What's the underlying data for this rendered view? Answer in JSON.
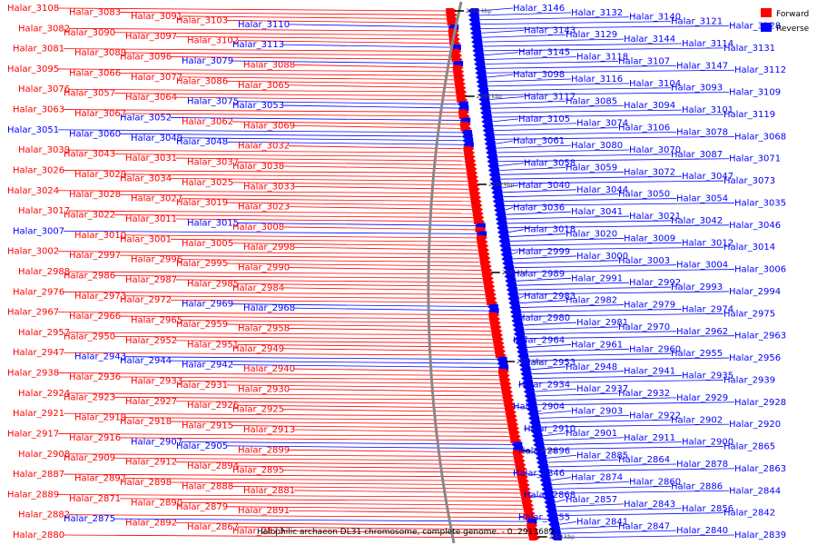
{
  "legend": {
    "forward": {
      "label": "Forward",
      "color": "#ff0000"
    },
    "reverse": {
      "label": "Reverse",
      "color": "#0000ff"
    }
  },
  "caption": "Halophilic archaeon DL31 chromosome, complete genome. - 0..2913689",
  "ticks": [
    "2350 kbp",
    "2300 kbp",
    "2250 kbp",
    "2200 kbp",
    "2150 kbp",
    "2100 kbp",
    "2050 kbp"
  ],
  "left_genes": [
    {
      "n": "Halar_3108",
      "s": "f"
    },
    {
      "n": "Halar_3083",
      "s": "f"
    },
    {
      "n": "Halar_3091",
      "s": "f"
    },
    {
      "n": "Halar_3103",
      "s": "f"
    },
    {
      "n": "Halar_3110",
      "s": "r"
    },
    {
      "n": "Halar_3082",
      "s": "f"
    },
    {
      "n": "Halar_3090",
      "s": "f"
    },
    {
      "n": "Halar_3097",
      "s": "f"
    },
    {
      "n": "Halar_3102",
      "s": "f"
    },
    {
      "n": "Halar_3113",
      "s": "r"
    },
    {
      "n": "Halar_3081",
      "s": "f"
    },
    {
      "n": "Halar_3089",
      "s": "f"
    },
    {
      "n": "Halar_3096",
      "s": "f"
    },
    {
      "n": "Halar_3079",
      "s": "r"
    },
    {
      "n": "Halar_3088",
      "s": "f"
    },
    {
      "n": "Halar_3095",
      "s": "f"
    },
    {
      "n": "Halar_3066",
      "s": "f"
    },
    {
      "n": "Halar_3077",
      "s": "f"
    },
    {
      "n": "Halar_3086",
      "s": "f"
    },
    {
      "n": "Halar_3065",
      "s": "f"
    },
    {
      "n": "Halar_3076",
      "s": "f"
    },
    {
      "n": "Halar_3057",
      "s": "f"
    },
    {
      "n": "Halar_3064",
      "s": "f"
    },
    {
      "n": "Halar_3075",
      "s": "r"
    },
    {
      "n": "Halar_3053",
      "s": "r"
    },
    {
      "n": "Halar_3063",
      "s": "f"
    },
    {
      "n": "Halar_3067",
      "s": "f"
    },
    {
      "n": "Halar_3052",
      "s": "r"
    },
    {
      "n": "Halar_3062",
      "s": "f"
    },
    {
      "n": "Halar_3069",
      "s": "f"
    },
    {
      "n": "Halar_3051",
      "s": "r"
    },
    {
      "n": "Halar_3060",
      "s": "r"
    },
    {
      "n": "Halar_3049",
      "s": "r"
    },
    {
      "n": "Halar_3048",
      "s": "r"
    },
    {
      "n": "Halar_3032",
      "s": "f"
    },
    {
      "n": "Halar_3039",
      "s": "f"
    },
    {
      "n": "Halar_3043",
      "s": "f"
    },
    {
      "n": "Halar_3031",
      "s": "f"
    },
    {
      "n": "Halar_3037",
      "s": "f"
    },
    {
      "n": "Halar_3038",
      "s": "f"
    },
    {
      "n": "Halar_3026",
      "s": "f"
    },
    {
      "n": "Halar_3029",
      "s": "f"
    },
    {
      "n": "Halar_3034",
      "s": "f"
    },
    {
      "n": "Halar_3025",
      "s": "f"
    },
    {
      "n": "Halar_3033",
      "s": "f"
    },
    {
      "n": "Halar_3024",
      "s": "f"
    },
    {
      "n": "Halar_3028",
      "s": "f"
    },
    {
      "n": "Halar_3027",
      "s": "f"
    },
    {
      "n": "Halar_3019",
      "s": "f"
    },
    {
      "n": "Halar_3023",
      "s": "f"
    },
    {
      "n": "Halar_3017",
      "s": "f"
    },
    {
      "n": "Halar_3022",
      "s": "f"
    },
    {
      "n": "Halar_3011",
      "s": "f"
    },
    {
      "n": "Halar_3015",
      "s": "r"
    },
    {
      "n": "Halar_3008",
      "s": "f"
    },
    {
      "n": "Halar_3007",
      "s": "r"
    },
    {
      "n": "Halar_3010",
      "s": "f"
    },
    {
      "n": "Halar_3001",
      "s": "f"
    },
    {
      "n": "Halar_3005",
      "s": "f"
    },
    {
      "n": "Halar_2998",
      "s": "f"
    },
    {
      "n": "Halar_3002",
      "s": "f"
    },
    {
      "n": "Halar_2997",
      "s": "f"
    },
    {
      "n": "Halar_2996",
      "s": "f"
    },
    {
      "n": "Halar_2995",
      "s": "f"
    },
    {
      "n": "Halar_2990",
      "s": "f"
    },
    {
      "n": "Halar_2988",
      "s": "f"
    },
    {
      "n": "Halar_2986",
      "s": "f"
    },
    {
      "n": "Halar_2987",
      "s": "f"
    },
    {
      "n": "Halar_2985",
      "s": "f"
    },
    {
      "n": "Halar_2984",
      "s": "f"
    },
    {
      "n": "Halar_2976",
      "s": "f"
    },
    {
      "n": "Halar_2973",
      "s": "f"
    },
    {
      "n": "Halar_2972",
      "s": "f"
    },
    {
      "n": "Halar_2969",
      "s": "r"
    },
    {
      "n": "Halar_2968",
      "s": "r"
    },
    {
      "n": "Halar_2967",
      "s": "f"
    },
    {
      "n": "Halar_2966",
      "s": "f"
    },
    {
      "n": "Halar_2965",
      "s": "f"
    },
    {
      "n": "Halar_2959",
      "s": "f"
    },
    {
      "n": "Halar_2958",
      "s": "f"
    },
    {
      "n": "Halar_2957",
      "s": "f"
    },
    {
      "n": "Halar_2950",
      "s": "f"
    },
    {
      "n": "Halar_2952",
      "s": "f"
    },
    {
      "n": "Halar_2951",
      "s": "f"
    },
    {
      "n": "Halar_2949",
      "s": "f"
    },
    {
      "n": "Halar_2947",
      "s": "f"
    },
    {
      "n": "Halar_2943",
      "s": "r"
    },
    {
      "n": "Halar_2944",
      "s": "r"
    },
    {
      "n": "Halar_2942",
      "s": "r"
    },
    {
      "n": "Halar_2940",
      "s": "f"
    },
    {
      "n": "Halar_2938",
      "s": "f"
    },
    {
      "n": "Halar_2936",
      "s": "f"
    },
    {
      "n": "Halar_2933",
      "s": "f"
    },
    {
      "n": "Halar_2931",
      "s": "f"
    },
    {
      "n": "Halar_2930",
      "s": "f"
    },
    {
      "n": "Halar_2924",
      "s": "f"
    },
    {
      "n": "Halar_2923",
      "s": "f"
    },
    {
      "n": "Halar_2927",
      "s": "f"
    },
    {
      "n": "Halar_2926",
      "s": "f"
    },
    {
      "n": "Halar_2925",
      "s": "f"
    },
    {
      "n": "Halar_2921",
      "s": "f"
    },
    {
      "n": "Halar_2919",
      "s": "f"
    },
    {
      "n": "Halar_2918",
      "s": "f"
    },
    {
      "n": "Halar_2915",
      "s": "f"
    },
    {
      "n": "Halar_2913",
      "s": "f"
    },
    {
      "n": "Halar_2917",
      "s": "f"
    },
    {
      "n": "Halar_2916",
      "s": "f"
    },
    {
      "n": "Halar_2907",
      "s": "r"
    },
    {
      "n": "Halar_2905",
      "s": "r"
    },
    {
      "n": "Halar_2899",
      "s": "f"
    },
    {
      "n": "Halar_2908",
      "s": "f"
    },
    {
      "n": "Halar_2909",
      "s": "f"
    },
    {
      "n": "Halar_2912",
      "s": "f"
    },
    {
      "n": "Halar_2894",
      "s": "f"
    },
    {
      "n": "Halar_2895",
      "s": "f"
    },
    {
      "n": "Halar_2887",
      "s": "f"
    },
    {
      "n": "Halar_2897",
      "s": "f"
    },
    {
      "n": "Halar_2898",
      "s": "f"
    },
    {
      "n": "Halar_2888",
      "s": "f"
    },
    {
      "n": "Halar_2881",
      "s": "f"
    },
    {
      "n": "Halar_2889",
      "s": "f"
    },
    {
      "n": "Halar_2871",
      "s": "f"
    },
    {
      "n": "Halar_2890",
      "s": "f"
    },
    {
      "n": "Halar_2879",
      "s": "f"
    },
    {
      "n": "Halar_2891",
      "s": "f"
    },
    {
      "n": "Halar_2882",
      "s": "f"
    },
    {
      "n": "Halar_2875",
      "s": "r"
    },
    {
      "n": "Halar_2892",
      "s": "f"
    },
    {
      "n": "Halar_2867",
      "s": "f"
    },
    {
      "n": "Halar_2873",
      "s": "f"
    },
    {
      "n": "Halar_2880",
      "s": "f"
    }
  ],
  "right_genes": [
    {
      "n": "Halar_3146",
      "s": "r"
    },
    {
      "n": "Halar_3132",
      "s": "r"
    },
    {
      "n": "Halar_3140",
      "s": "r"
    },
    {
      "n": "Halar_3121",
      "s": "r"
    },
    {
      "n": "Halar_3128",
      "s": "r"
    },
    {
      "n": "Halar_3143",
      "s": "r"
    },
    {
      "n": "Halar_3129",
      "s": "r"
    },
    {
      "n": "Halar_3144",
      "s": "r"
    },
    {
      "n": "Halar_3114",
      "s": "r"
    },
    {
      "n": "Halar_3131",
      "s": "r"
    },
    {
      "n": "Halar_3145",
      "s": "r"
    },
    {
      "n": "Halar_3118",
      "s": "r"
    },
    {
      "n": "Halar_3107",
      "s": "r"
    },
    {
      "n": "Halar_3147",
      "s": "r"
    },
    {
      "n": "Halar_3112",
      "s": "r"
    },
    {
      "n": "Halar_3098",
      "s": "r"
    },
    {
      "n": "Halar_3116",
      "s": "r"
    },
    {
      "n": "Halar_3104",
      "s": "r"
    },
    {
      "n": "Halar_3093",
      "s": "r"
    },
    {
      "n": "Halar_3109",
      "s": "r"
    },
    {
      "n": "Halar_3117",
      "s": "r"
    },
    {
      "n": "Halar_3085",
      "s": "r"
    },
    {
      "n": "Halar_3094",
      "s": "r"
    },
    {
      "n": "Halar_3101",
      "s": "r"
    },
    {
      "n": "Halar_3119",
      "s": "r"
    },
    {
      "n": "Halar_3105",
      "s": "r"
    },
    {
      "n": "Halar_3074",
      "s": "r"
    },
    {
      "n": "Halar_3106",
      "s": "r"
    },
    {
      "n": "Halar_3078",
      "s": "r"
    },
    {
      "n": "Halar_3068",
      "s": "r"
    },
    {
      "n": "Halar_3061",
      "s": "r"
    },
    {
      "n": "Halar_3080",
      "s": "r"
    },
    {
      "n": "Halar_3070",
      "s": "r"
    },
    {
      "n": "Halar_3087",
      "s": "r"
    },
    {
      "n": "Halar_3071",
      "s": "r"
    },
    {
      "n": "Halar_3058",
      "s": "r"
    },
    {
      "n": "Halar_3059",
      "s": "r"
    },
    {
      "n": "Halar_3072",
      "s": "r"
    },
    {
      "n": "Halar_3047",
      "s": "r"
    },
    {
      "n": "Halar_3073",
      "s": "r"
    },
    {
      "n": "Halar_3040",
      "s": "r"
    },
    {
      "n": "Halar_3044",
      "s": "r"
    },
    {
      "n": "Halar_3050",
      "s": "r"
    },
    {
      "n": "Halar_3054",
      "s": "r"
    },
    {
      "n": "Halar_3035",
      "s": "r"
    },
    {
      "n": "Halar_3036",
      "s": "r"
    },
    {
      "n": "Halar_3041",
      "s": "r"
    },
    {
      "n": "Halar_3021",
      "s": "r"
    },
    {
      "n": "Halar_3042",
      "s": "r"
    },
    {
      "n": "Halar_3046",
      "s": "r"
    },
    {
      "n": "Halar_3018",
      "s": "r"
    },
    {
      "n": "Halar_3020",
      "s": "r"
    },
    {
      "n": "Halar_3009",
      "s": "r"
    },
    {
      "n": "Halar_3012",
      "s": "r"
    },
    {
      "n": "Halar_3014",
      "s": "r"
    },
    {
      "n": "Halar_2999",
      "s": "r"
    },
    {
      "n": "Halar_3000",
      "s": "r"
    },
    {
      "n": "Halar_3003",
      "s": "r"
    },
    {
      "n": "Halar_3004",
      "s": "r"
    },
    {
      "n": "Halar_3006",
      "s": "r"
    },
    {
      "n": "Halar_2989",
      "s": "r"
    },
    {
      "n": "Halar_2991",
      "s": "r"
    },
    {
      "n": "Halar_2992",
      "s": "r"
    },
    {
      "n": "Halar_2993",
      "s": "r"
    },
    {
      "n": "Halar_2994",
      "s": "r"
    },
    {
      "n": "Halar_2983",
      "s": "r"
    },
    {
      "n": "Halar_2982",
      "s": "r"
    },
    {
      "n": "Halar_2979",
      "s": "r"
    },
    {
      "n": "Halar_2974",
      "s": "r"
    },
    {
      "n": "Halar_2975",
      "s": "r"
    },
    {
      "n": "Halar_2980",
      "s": "r"
    },
    {
      "n": "Halar_2981",
      "s": "r"
    },
    {
      "n": "Halar_2970",
      "s": "r"
    },
    {
      "n": "Halar_2962",
      "s": "r"
    },
    {
      "n": "Halar_2963",
      "s": "r"
    },
    {
      "n": "Halar_2964",
      "s": "r"
    },
    {
      "n": "Halar_2961",
      "s": "r"
    },
    {
      "n": "Halar_2960",
      "s": "r"
    },
    {
      "n": "Halar_2955",
      "s": "r"
    },
    {
      "n": "Halar_2956",
      "s": "r"
    },
    {
      "n": "Halar_2953",
      "s": "r"
    },
    {
      "n": "Halar_2948",
      "s": "r"
    },
    {
      "n": "Halar_2941",
      "s": "r"
    },
    {
      "n": "Halar_2935",
      "s": "r"
    },
    {
      "n": "Halar_2939",
      "s": "r"
    },
    {
      "n": "Halar_2934",
      "s": "r"
    },
    {
      "n": "Halar_2937",
      "s": "r"
    },
    {
      "n": "Halar_2932",
      "s": "r"
    },
    {
      "n": "Halar_2929",
      "s": "r"
    },
    {
      "n": "Halar_2928",
      "s": "r"
    },
    {
      "n": "Halar_2904",
      "s": "r"
    },
    {
      "n": "Halar_2903",
      "s": "r"
    },
    {
      "n": "Halar_2922",
      "s": "r"
    },
    {
      "n": "Halar_2902",
      "s": "r"
    },
    {
      "n": "Halar_2920",
      "s": "r"
    },
    {
      "n": "Halar_2910",
      "s": "r"
    },
    {
      "n": "Halar_2901",
      "s": "r"
    },
    {
      "n": "Halar_2911",
      "s": "r"
    },
    {
      "n": "Halar_2900",
      "s": "r"
    },
    {
      "n": "Halar_2865",
      "s": "r"
    },
    {
      "n": "Halar_2896",
      "s": "r"
    },
    {
      "n": "Halar_2885",
      "s": "r"
    },
    {
      "n": "Halar_2864",
      "s": "r"
    },
    {
      "n": "Halar_2878",
      "s": "r"
    },
    {
      "n": "Halar_2863",
      "s": "r"
    },
    {
      "n": "Halar_2846",
      "s": "r"
    },
    {
      "n": "Halar_2874",
      "s": "r"
    },
    {
      "n": "Halar_2860",
      "s": "r"
    },
    {
      "n": "Halar_2886",
      "s": "r"
    },
    {
      "n": "Halar_2844",
      "s": "r"
    },
    {
      "n": "Halar_2868",
      "s": "r"
    },
    {
      "n": "Halar_2857",
      "s": "r"
    },
    {
      "n": "Halar_2843",
      "s": "r"
    },
    {
      "n": "Halar_2856",
      "s": "r"
    },
    {
      "n": "Halar_2842",
      "s": "r"
    },
    {
      "n": "Halar_2855",
      "s": "r"
    },
    {
      "n": "Halar_2841",
      "s": "r"
    },
    {
      "n": "Halar_2847",
      "s": "r"
    },
    {
      "n": "Halar_2840",
      "s": "r"
    },
    {
      "n": "Halar_2839",
      "s": "r"
    }
  ]
}
